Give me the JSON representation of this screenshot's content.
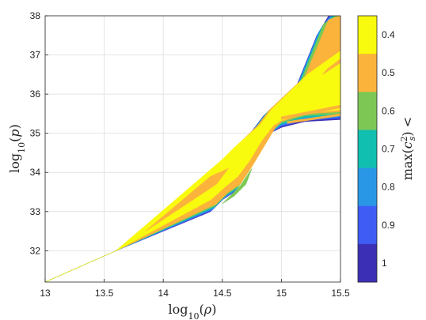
{
  "chart_data": {
    "type": "area",
    "xlabel": "log10(ρ)",
    "ylabel": "log10(p)",
    "colorbar_label": "max(c_s^2) <",
    "xlim": [
      13,
      15.5
    ],
    "ylim": [
      31.2,
      38
    ],
    "xticks": [
      "13",
      "13.5",
      "14",
      "14.5",
      "15",
      "15.5"
    ],
    "yticks": [
      "32",
      "33",
      "34",
      "35",
      "36",
      "37",
      "38"
    ],
    "grid": true,
    "colorbar": {
      "levels": [
        {
          "label": "0.4",
          "color": "#f9fb0e"
        },
        {
          "label": "0.5",
          "color": "#fbb33c"
        },
        {
          "label": "0.6",
          "color": "#7dc855"
        },
        {
          "label": "0.7",
          "color": "#10bfb0"
        },
        {
          "label": "0.8",
          "color": "#2a97e6"
        },
        {
          "label": "0.9",
          "color": "#3f5cf5"
        },
        {
          "label": "1",
          "color": "#3b30b5"
        }
      ]
    },
    "regions": [
      {
        "level": "1",
        "boundary": [
          [
            13.0,
            31.2
          ],
          [
            13.6,
            32.0
          ],
          [
            14.5,
            34.2
          ],
          [
            14.6,
            34.5
          ],
          [
            14.75,
            35.05
          ],
          [
            14.85,
            35.45
          ],
          [
            15.1,
            36.0
          ],
          [
            15.3,
            37.5
          ],
          [
            15.4,
            38.0
          ],
          [
            15.5,
            38.0
          ],
          [
            15.5,
            35.35
          ],
          [
            15.2,
            35.3
          ],
          [
            15.0,
            35.15
          ],
          [
            14.9,
            35.0
          ],
          [
            14.8,
            34.5
          ],
          [
            14.7,
            34.0
          ],
          [
            14.6,
            33.5
          ],
          [
            14.5,
            33.3
          ],
          [
            14.4,
            33.0
          ],
          [
            13.6,
            32.0
          ]
        ]
      },
      {
        "level": "0.9",
        "boundary": [
          [
            13.0,
            31.2
          ],
          [
            13.6,
            32.0
          ],
          [
            14.5,
            34.22
          ],
          [
            14.6,
            34.52
          ],
          [
            14.76,
            35.08
          ],
          [
            14.86,
            35.48
          ],
          [
            15.11,
            36.05
          ],
          [
            15.31,
            37.55
          ],
          [
            15.41,
            38.0
          ],
          [
            15.5,
            38.0
          ],
          [
            15.5,
            35.38
          ],
          [
            15.2,
            35.33
          ],
          [
            15.0,
            35.18
          ],
          [
            14.91,
            35.02
          ],
          [
            14.81,
            34.52
          ],
          [
            14.71,
            34.02
          ],
          [
            14.61,
            33.53
          ],
          [
            14.51,
            33.33
          ],
          [
            14.41,
            33.03
          ],
          [
            13.6,
            32.0
          ]
        ]
      },
      {
        "level": "0.8",
        "boundary": [
          [
            13.0,
            31.2
          ],
          [
            13.6,
            32.0
          ],
          [
            14.5,
            34.25
          ],
          [
            14.6,
            34.55
          ],
          [
            14.77,
            35.11
          ],
          [
            14.87,
            35.51
          ],
          [
            15.12,
            36.1
          ],
          [
            15.32,
            37.6
          ],
          [
            15.42,
            38.0
          ],
          [
            15.5,
            38.0
          ],
          [
            15.5,
            35.42
          ],
          [
            15.2,
            35.37
          ],
          [
            15.0,
            35.21
          ],
          [
            14.92,
            35.05
          ],
          [
            14.82,
            34.55
          ],
          [
            14.72,
            34.05
          ],
          [
            14.62,
            33.57
          ],
          [
            14.52,
            33.37
          ],
          [
            14.42,
            33.07
          ],
          [
            13.6,
            32.0
          ]
        ]
      },
      {
        "level": "0.7",
        "boundary": [
          [
            13.0,
            31.2
          ],
          [
            13.6,
            32.0
          ],
          [
            14.5,
            34.28
          ],
          [
            14.6,
            34.58
          ],
          [
            14.78,
            35.14
          ],
          [
            14.88,
            35.54
          ],
          [
            15.14,
            36.2
          ],
          [
            15.34,
            37.7
          ],
          [
            15.44,
            38.0
          ],
          [
            15.5,
            38.0
          ],
          [
            15.5,
            35.46
          ],
          [
            15.2,
            35.41
          ],
          [
            15.0,
            35.24
          ],
          [
            14.93,
            35.08
          ],
          [
            14.83,
            34.58
          ],
          [
            14.73,
            34.08
          ],
          [
            14.63,
            33.61
          ],
          [
            14.53,
            33.41
          ],
          [
            14.43,
            33.11
          ],
          [
            13.6,
            32.0
          ]
        ]
      },
      {
        "level": "0.6",
        "boundary": [
          [
            13.0,
            31.2
          ],
          [
            13.6,
            32.0
          ],
          [
            14.5,
            34.3
          ],
          [
            14.6,
            34.6
          ],
          [
            14.79,
            35.17
          ],
          [
            14.89,
            35.57
          ],
          [
            15.16,
            36.3
          ],
          [
            15.36,
            37.8
          ],
          [
            15.46,
            38.0
          ],
          [
            15.5,
            38.0
          ],
          [
            15.5,
            35.5
          ],
          [
            15.2,
            35.45
          ],
          [
            15.0,
            35.27
          ],
          [
            14.94,
            35.11
          ],
          [
            14.84,
            34.61
          ],
          [
            14.74,
            34.11
          ],
          [
            14.64,
            33.65
          ],
          [
            14.54,
            33.45
          ],
          [
            14.44,
            33.15
          ],
          [
            13.6,
            32.0
          ]
        ]
      },
      {
        "level": "0.5",
        "boundary": [
          [
            13.0,
            31.2
          ],
          [
            13.6,
            32.0
          ],
          [
            14.5,
            34.32
          ],
          [
            14.6,
            34.62
          ],
          [
            14.8,
            35.2
          ],
          [
            14.9,
            35.6
          ],
          [
            15.2,
            36.45
          ],
          [
            15.4,
            37.9
          ],
          [
            15.5,
            38.0
          ],
          [
            15.5,
            35.55
          ],
          [
            15.2,
            35.5
          ],
          [
            15.0,
            35.3
          ],
          [
            14.95,
            35.15
          ],
          [
            14.85,
            34.65
          ],
          [
            14.75,
            34.15
          ],
          [
            14.65,
            33.7
          ],
          [
            14.55,
            33.5
          ],
          [
            14.45,
            33.2
          ],
          [
            13.6,
            32.0
          ]
        ]
      },
      {
        "level": "0.4",
        "boundary": [
          [
            13.0,
            31.2
          ],
          [
            13.6,
            32.0
          ],
          [
            14.5,
            34.33
          ],
          [
            14.6,
            34.63
          ],
          [
            14.82,
            35.22
          ],
          [
            14.92,
            35.62
          ],
          [
            15.22,
            36.5
          ],
          [
            15.5,
            37.1
          ],
          [
            15.5,
            35.6
          ],
          [
            15.2,
            35.52
          ],
          [
            15.0,
            35.33
          ],
          [
            14.93,
            35.2
          ],
          [
            14.83,
            34.8
          ],
          [
            14.73,
            34.3
          ],
          [
            14.63,
            33.9
          ],
          [
            14.53,
            33.65
          ],
          [
            14.4,
            33.3
          ],
          [
            13.6,
            32.0
          ]
        ]
      }
    ],
    "streaks": [
      {
        "level": "0.5",
        "boundary": [
          [
            13.85,
            32.5
          ],
          [
            14.4,
            33.9
          ],
          [
            14.55,
            34.1
          ],
          [
            14.45,
            33.7
          ],
          [
            14.3,
            33.4
          ],
          [
            14.05,
            32.9
          ]
        ]
      },
      {
        "level": "0.6",
        "boundary": [
          [
            14.5,
            33.2
          ],
          [
            14.65,
            33.65
          ],
          [
            14.75,
            34.1
          ],
          [
            14.7,
            33.7
          ],
          [
            14.6,
            33.4
          ]
        ]
      },
      {
        "level": "0.5",
        "boundary": [
          [
            15.0,
            35.35
          ],
          [
            15.5,
            35.65
          ],
          [
            15.5,
            35.72
          ],
          [
            15.0,
            35.42
          ]
        ]
      },
      {
        "level": "0.5",
        "boundary": [
          [
            15.05,
            35.25
          ],
          [
            15.5,
            35.45
          ],
          [
            15.5,
            35.5
          ],
          [
            15.05,
            35.3
          ]
        ]
      },
      {
        "level": "0.5",
        "boundary": [
          [
            15.35,
            36.5
          ],
          [
            15.5,
            36.8
          ],
          [
            15.5,
            36.9
          ],
          [
            15.38,
            36.62
          ]
        ]
      },
      {
        "level": "0.5",
        "boundary": [
          [
            15.4,
            37.2
          ],
          [
            15.5,
            37.6
          ],
          [
            15.5,
            37.75
          ],
          [
            15.45,
            37.5
          ]
        ]
      }
    ]
  }
}
